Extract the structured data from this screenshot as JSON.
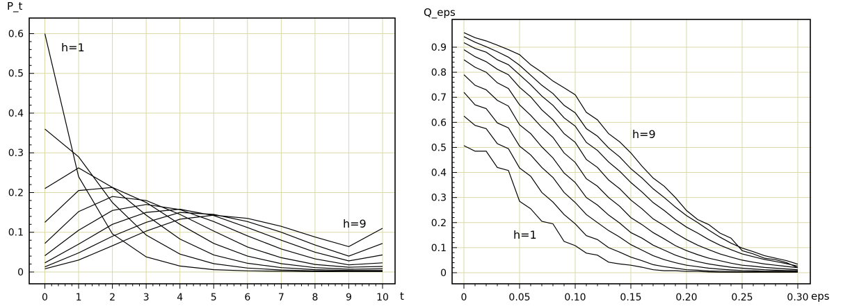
{
  "chart_data": [
    {
      "type": "line",
      "ylabel": "P_t",
      "xlabel": "t",
      "xlim": [
        0,
        10
      ],
      "ylim": [
        0,
        0.62
      ],
      "grid": true,
      "xticks": [
        "0",
        "1",
        "2",
        "3",
        "4",
        "5",
        "6",
        "7",
        "8",
        "9",
        "10"
      ],
      "yticks": [
        "0",
        "0.1",
        "0.2",
        "0.3",
        "0.4",
        "0.5",
        "0.6"
      ],
      "annotations": [
        "h=1",
        "h=9"
      ],
      "x": [
        0,
        1,
        2,
        3,
        4,
        5,
        6,
        7,
        8,
        9,
        10
      ],
      "series": [
        {
          "values": [
            0.6,
            0.24,
            0.096,
            0.038,
            0.015,
            0.006,
            0.003,
            0.002,
            0.001,
            0.001,
            0.001
          ]
        },
        {
          "values": [
            0.36,
            0.29,
            0.175,
            0.093,
            0.045,
            0.021,
            0.01,
            0.005,
            0.003,
            0.002,
            0.002
          ]
        },
        {
          "values": [
            0.21,
            0.262,
            0.213,
            0.143,
            0.083,
            0.043,
            0.022,
            0.011,
            0.006,
            0.004,
            0.004
          ]
        },
        {
          "values": [
            0.125,
            0.205,
            0.213,
            0.175,
            0.12,
            0.072,
            0.04,
            0.021,
            0.011,
            0.007,
            0.008
          ]
        },
        {
          "values": [
            0.072,
            0.152,
            0.19,
            0.18,
            0.145,
            0.103,
            0.063,
            0.036,
            0.019,
            0.012,
            0.014
          ]
        },
        {
          "values": [
            0.041,
            0.105,
            0.155,
            0.17,
            0.157,
            0.127,
            0.091,
            0.058,
            0.033,
            0.018,
            0.023
          ]
        },
        {
          "values": [
            0.023,
            0.07,
            0.12,
            0.15,
            0.158,
            0.142,
            0.112,
            0.08,
            0.05,
            0.028,
            0.043
          ]
        },
        {
          "values": [
            0.013,
            0.048,
            0.09,
            0.125,
            0.15,
            0.145,
            0.127,
            0.1,
            0.068,
            0.04,
            0.072
          ]
        },
        {
          "values": [
            0.008,
            0.03,
            0.066,
            0.103,
            0.133,
            0.143,
            0.135,
            0.115,
            0.088,
            0.064,
            0.11
          ]
        }
      ]
    },
    {
      "type": "line",
      "ylabel": "Q_eps",
      "xlabel": "eps",
      "xlim": [
        0,
        0.3
      ],
      "ylim": [
        0,
        0.97
      ],
      "grid": true,
      "xticks": [
        "0",
        "0.05",
        "0.10",
        "0.15",
        "0.20",
        "0.25",
        "0.30"
      ],
      "yticks": [
        "0",
        "0.1",
        "0.2",
        "0.3",
        "0.4",
        "0.5",
        "0.6",
        "0.7",
        "0.8",
        "0.9"
      ],
      "annotations": [
        "h=1",
        "h=9"
      ],
      "x": [
        0,
        0.01,
        0.02,
        0.03,
        0.04,
        0.05,
        0.06,
        0.07,
        0.08,
        0.09,
        0.1,
        0.11,
        0.12,
        0.13,
        0.14,
        0.15,
        0.16,
        0.17,
        0.18,
        0.19,
        0.2,
        0.21,
        0.22,
        0.23,
        0.24,
        0.25,
        0.26,
        0.27,
        0.28,
        0.29,
        0.3
      ],
      "series": [
        {
          "bold": true,
          "values": [
            0.507,
            0.485,
            0.485,
            0.42,
            0.408,
            0.285,
            0.255,
            0.205,
            0.195,
            0.125,
            0.108,
            0.078,
            0.07,
            0.042,
            0.035,
            0.03,
            0.022,
            0.012,
            0.008,
            0.008,
            0.005,
            0.005,
            0.003,
            0.002,
            0.002,
            0.002,
            0.002,
            0.002,
            0.002,
            0.002,
            0.002
          ]
        },
        {
          "values": [
            0.625,
            0.588,
            0.575,
            0.515,
            0.495,
            0.418,
            0.385,
            0.32,
            0.282,
            0.232,
            0.195,
            0.148,
            0.132,
            0.1,
            0.082,
            0.062,
            0.048,
            0.032,
            0.024,
            0.018,
            0.012,
            0.01,
            0.007,
            0.006,
            0.005,
            0.004,
            0.004,
            0.003,
            0.003,
            0.003,
            0.003
          ]
        },
        {
          "values": [
            0.72,
            0.67,
            0.655,
            0.598,
            0.578,
            0.505,
            0.47,
            0.42,
            0.38,
            0.32,
            0.28,
            0.232,
            0.2,
            0.168,
            0.142,
            0.112,
            0.09,
            0.068,
            0.052,
            0.04,
            0.03,
            0.024,
            0.018,
            0.014,
            0.011,
            0.009,
            0.008,
            0.006,
            0.006,
            0.005,
            0.005
          ]
        },
        {
          "values": [
            0.79,
            0.748,
            0.73,
            0.688,
            0.665,
            0.59,
            0.555,
            0.502,
            0.458,
            0.398,
            0.36,
            0.3,
            0.27,
            0.23,
            0.198,
            0.16,
            0.138,
            0.11,
            0.09,
            0.07,
            0.055,
            0.044,
            0.035,
            0.028,
            0.022,
            0.018,
            0.015,
            0.012,
            0.01,
            0.009,
            0.008
          ]
        },
        {
          "values": [
            0.85,
            0.82,
            0.8,
            0.758,
            0.735,
            0.67,
            0.628,
            0.58,
            0.54,
            0.478,
            0.44,
            0.375,
            0.345,
            0.3,
            0.265,
            0.22,
            0.192,
            0.16,
            0.135,
            0.108,
            0.088,
            0.072,
            0.058,
            0.048,
            0.038,
            0.03,
            0.026,
            0.021,
            0.018,
            0.015,
            0.012
          ]
        },
        {
          "values": [
            0.89,
            0.862,
            0.842,
            0.812,
            0.79,
            0.74,
            0.702,
            0.65,
            0.61,
            0.555,
            0.52,
            0.452,
            0.42,
            0.37,
            0.335,
            0.29,
            0.255,
            0.215,
            0.188,
            0.158,
            0.132,
            0.11,
            0.092,
            0.075,
            0.062,
            0.05,
            0.042,
            0.035,
            0.03,
            0.025,
            0.02
          ]
        },
        {
          "values": [
            0.918,
            0.895,
            0.88,
            0.85,
            0.83,
            0.79,
            0.75,
            0.705,
            0.668,
            0.618,
            0.585,
            0.52,
            0.488,
            0.442,
            0.405,
            0.36,
            0.322,
            0.28,
            0.248,
            0.212,
            0.182,
            0.158,
            0.132,
            0.11,
            0.092,
            0.075,
            0.064,
            0.053,
            0.045,
            0.036,
            0.026
          ]
        },
        {
          "values": [
            0.942,
            0.92,
            0.902,
            0.882,
            0.86,
            0.828,
            0.788,
            0.748,
            0.715,
            0.668,
            0.638,
            0.575,
            0.545,
            0.498,
            0.462,
            0.415,
            0.378,
            0.335,
            0.3,
            0.262,
            0.228,
            0.2,
            0.17,
            0.142,
            0.118,
            0.098,
            0.084,
            0.068,
            0.058,
            0.048,
            0.034
          ]
        },
        {
          "values": [
            0.958,
            0.938,
            0.925,
            0.908,
            0.89,
            0.87,
            0.83,
            0.8,
            0.765,
            0.738,
            0.71,
            0.64,
            0.61,
            0.555,
            0.522,
            0.478,
            0.425,
            0.378,
            0.345,
            0.3,
            0.248,
            0.212,
            0.192,
            0.158,
            0.138,
            0.088,
            0.075,
            0.058,
            0.052,
            0.04,
            0.02
          ]
        }
      ]
    }
  ]
}
